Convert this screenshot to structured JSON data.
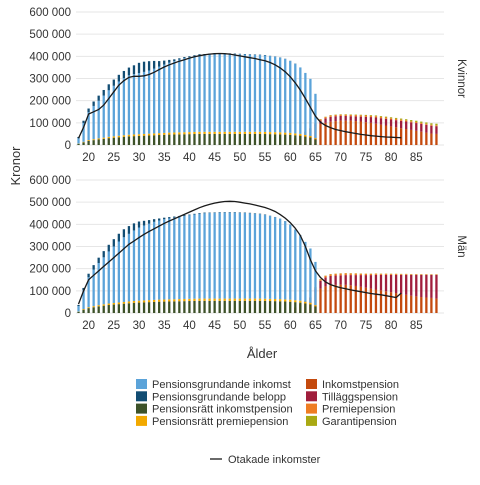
{
  "chart_data": {
    "type": "bar",
    "xlabel": "Ålder",
    "ylabel": "Kronor",
    "ylim": [
      0,
      600000
    ],
    "y_ticks": [
      0,
      100000,
      200000,
      300000,
      400000,
      500000,
      600000
    ],
    "y_tick_labels": [
      "0",
      "100 000",
      "200 000",
      "300 000",
      "400 000",
      "500 000",
      "600 000"
    ],
    "x_ticks": [
      20,
      25,
      30,
      35,
      40,
      45,
      50,
      55,
      60,
      65,
      70,
      75,
      80,
      85
    ],
    "x_tick_labels": [
      "20",
      "25",
      "30",
      "35",
      "40",
      "45",
      "50",
      "55",
      "60",
      "65",
      "70",
      "75",
      "80",
      "85"
    ],
    "xlim": [
      17.5,
      90.5
    ],
    "stacked": true,
    "grid": true,
    "legend_position": "bottom",
    "series_meta": [
      {
        "key": "pgi",
        "name": "Pensionsgrundande inkomst",
        "color": "#5ba3d9"
      },
      {
        "key": "pgb",
        "name": "Pensionsgrundande belopp",
        "color": "#124d73"
      },
      {
        "key": "pri",
        "name": "Pensionsrätt inkomstpension",
        "color": "#3d5229"
      },
      {
        "key": "prp",
        "name": "Pensionsrätt premiepension",
        "color": "#f2a900"
      },
      {
        "key": "ink",
        "name": "Inkomstpension",
        "color": "#c44a0e"
      },
      {
        "key": "til",
        "name": "Tilläggspension",
        "color": "#a01e3c"
      },
      {
        "key": "pre",
        "name": "Premiepension",
        "color": "#ee7d23"
      },
      {
        "key": "gar",
        "name": "Garantipension",
        "color": "#a9a913"
      }
    ],
    "line_legend": "Otakade inkomster",
    "line_color": "#1a1a1a",
    "panels": [
      {
        "name": "Kvinnor",
        "working_ages": [
          18,
          19,
          20,
          21,
          22,
          23,
          24,
          25,
          26,
          27,
          28,
          29,
          30,
          31,
          32,
          33,
          34,
          35,
          36,
          37,
          38,
          39,
          40,
          41,
          42,
          43,
          44,
          45,
          46,
          47,
          48,
          49,
          50,
          51,
          52,
          53,
          54,
          55,
          56,
          57,
          58,
          59,
          60,
          61,
          62,
          63,
          64,
          65
        ],
        "pgi": [
          25000,
          85000,
          125000,
          150000,
          170000,
          190000,
          210000,
          228000,
          245000,
          258000,
          268000,
          272000,
          276000,
          280000,
          285000,
          292000,
          300000,
          308000,
          316000,
          322000,
          328000,
          334000,
          338000,
          342000,
          346000,
          348000,
          350000,
          352000,
          352000,
          352000,
          352000,
          351000,
          350000,
          349000,
          348000,
          347000,
          346000,
          345000,
          343000,
          341000,
          337000,
          332000,
          324000,
          314000,
          300000,
          280000,
          258000,
          200000
        ],
        "pgb": [
          5000,
          10000,
          17000,
          20000,
          23000,
          25000,
          27000,
          28000,
          30000,
          32000,
          35000,
          40000,
          46000,
          46000,
          42000,
          35000,
          25000,
          18000,
          12000,
          8000,
          6000,
          5000,
          4000,
          4000,
          4000,
          3000,
          3000,
          3000,
          3000,
          2000,
          2000,
          2000,
          2000,
          2000,
          2000,
          2000,
          2000,
          2000,
          1000,
          1000,
          1000,
          1000,
          1000,
          1000,
          0,
          0,
          0,
          0
        ],
        "pri": [
          5000,
          12000,
          19000,
          22000,
          25000,
          28000,
          31000,
          33000,
          35000,
          37000,
          39000,
          40000,
          41000,
          42000,
          43000,
          44000,
          45000,
          46000,
          47000,
          47500,
          48000,
          48500,
          49000,
          49500,
          50000,
          50000,
          50000,
          50000,
          50000,
          50000,
          50000,
          50000,
          50000,
          50000,
          50000,
          50000,
          50000,
          49500,
          49000,
          48500,
          48000,
          47000,
          46000,
          44000,
          42000,
          38000,
          34000,
          26000
        ],
        "prp": [
          1200,
          2500,
          3600,
          4200,
          4700,
          5200,
          5800,
          6200,
          6600,
          7000,
          7300,
          7500,
          7700,
          7900,
          8100,
          8300,
          8500,
          8700,
          8900,
          9000,
          9100,
          9200,
          9300,
          9400,
          9500,
          9500,
          9500,
          9500,
          9500,
          9500,
          9500,
          9500,
          9500,
          9500,
          9500,
          9500,
          9500,
          9400,
          9300,
          9200,
          9100,
          8900,
          8700,
          8300,
          8000,
          7200,
          6400,
          5000
        ],
        "retired_ages": [
          61,
          62,
          63,
          64,
          65,
          66,
          67,
          68,
          69,
          70,
          71,
          72,
          73,
          74,
          75,
          76,
          77,
          78,
          79,
          80,
          81,
          82,
          83,
          84,
          85,
          86,
          87,
          88,
          89
        ],
        "ink": [
          30000,
          45000,
          60000,
          75000,
          85000,
          95000,
          100000,
          105000,
          108000,
          110000,
          110000,
          110000,
          108000,
          106000,
          103000,
          100000,
          96000,
          92000,
          88000,
          84000,
          80000,
          76000,
          72000,
          68000,
          64000,
          60000,
          56000,
          52000,
          50000
        ],
        "til": [
          0,
          0,
          0,
          0,
          8000,
          15000,
          20000,
          22000,
          22000,
          21000,
          21000,
          20000,
          21000,
          22000,
          24000,
          26000,
          28000,
          29000,
          30000,
          31000,
          32000,
          33000,
          34000,
          34000,
          35000,
          35000,
          35000,
          35000,
          35000
        ],
        "pre": [
          0,
          0,
          0,
          0,
          4000,
          5500,
          6000,
          6000,
          6000,
          6000,
          6000,
          6000,
          6000,
          6000,
          6000,
          6000,
          6000,
          6000,
          6000,
          5800,
          5600,
          5400,
          5200,
          5000,
          4800,
          4600,
          4400,
          4200,
          4000
        ],
        "gar": [
          0,
          0,
          0,
          0,
          1000,
          1200,
          1500,
          1500,
          1500,
          1600,
          1800,
          2000,
          2200,
          2500,
          2800,
          3100,
          3400,
          3700,
          4000,
          4300,
          4600,
          4900,
          5200,
          5500,
          5800,
          6100,
          6400,
          6700,
          7000
        ],
        "line_x": [
          18,
          19,
          20,
          21,
          22,
          23,
          24,
          25,
          26,
          27,
          28,
          29,
          30,
          31,
          32,
          33,
          34,
          35,
          36,
          37,
          38,
          39,
          40,
          41,
          42,
          43,
          44,
          45,
          46,
          47,
          48,
          49,
          50,
          51,
          52,
          53,
          54,
          55,
          56,
          57,
          58,
          59,
          60,
          61,
          62,
          63,
          64,
          65,
          66,
          67,
          68,
          69,
          70,
          71,
          72,
          73,
          74,
          75,
          76,
          77,
          78,
          79,
          80,
          81,
          82
        ],
        "line_y": [
          30000,
          80000,
          140000,
          150000,
          160000,
          180000,
          210000,
          240000,
          270000,
          290000,
          305000,
          310000,
          310000,
          312000,
          318000,
          328000,
          340000,
          352000,
          362000,
          370000,
          378000,
          385000,
          392000,
          398000,
          403000,
          407000,
          410000,
          412000,
          413000,
          412000,
          410000,
          406000,
          402000,
          398000,
          394000,
          390000,
          385000,
          380000,
          372000,
          362000,
          348000,
          330000,
          308000,
          280000,
          248000,
          210000,
          170000,
          130000,
          103000,
          88000,
          78000,
          70000,
          65000,
          60000,
          56000,
          52000,
          48000,
          45000,
          42000,
          40000,
          38000,
          36000,
          35000,
          34000,
          33000
        ]
      },
      {
        "name": "Män",
        "working_ages": [
          18,
          19,
          20,
          21,
          22,
          23,
          24,
          25,
          26,
          27,
          28,
          29,
          30,
          31,
          32,
          33,
          34,
          35,
          36,
          37,
          38,
          39,
          40,
          41,
          42,
          43,
          44,
          45,
          46,
          47,
          48,
          49,
          50,
          51,
          52,
          53,
          54,
          55,
          56,
          57,
          58,
          59,
          60,
          61,
          62,
          63,
          64,
          65
        ],
        "pgi": [
          25000,
          85000,
          135000,
          165000,
          190000,
          212000,
          235000,
          255000,
          275000,
          292000,
          305000,
          318000,
          330000,
          338000,
          345000,
          352000,
          357000,
          362000,
          365000,
          368000,
          371000,
          374000,
          377000,
          380000,
          383000,
          385000,
          386000,
          387000,
          388000,
          388000,
          388000,
          388000,
          387000,
          386000,
          385000,
          383000,
          381000,
          378000,
          374000,
          369000,
          362000,
          352000,
          338000,
          318000,
          296000,
          270000,
          245000,
          195000
        ],
        "pgb": [
          5000,
          10000,
          16000,
          20000,
          24000,
          28000,
          30000,
          33000,
          35000,
          36000,
          35000,
          32000,
          27000,
          21000,
          16000,
          12000,
          9000,
          7000,
          6000,
          5000,
          4000,
          4000,
          3000,
          3000,
          3000,
          3000,
          2000,
          2000,
          2000,
          2000,
          2000,
          2000,
          2000,
          2000,
          2000,
          2000,
          2000,
          2000,
          1000,
          1000,
          1000,
          1000,
          1000,
          1000,
          0,
          0,
          0,
          0
        ],
        "pri": [
          5000,
          15000,
          22000,
          26000,
          30000,
          33000,
          36000,
          38000,
          40000,
          42000,
          44000,
          46000,
          47000,
          48000,
          49000,
          50000,
          51000,
          51500,
          52000,
          52500,
          53000,
          53500,
          54000,
          54500,
          55000,
          55000,
          55000,
          55000,
          55000,
          55000,
          55000,
          55000,
          55000,
          55000,
          55000,
          55000,
          55000,
          54500,
          54000,
          53500,
          53000,
          52000,
          51000,
          49000,
          47000,
          43000,
          39000,
          30000
        ],
        "prp": [
          1200,
          3000,
          4200,
          5000,
          5600,
          6200,
          6700,
          7100,
          7500,
          7800,
          8100,
          8400,
          8700,
          8900,
          9100,
          9300,
          9400,
          9500,
          9600,
          9700,
          9800,
          9900,
          10000,
          10000,
          10000,
          10000,
          10000,
          10000,
          10000,
          10000,
          10000,
          10000,
          10000,
          10000,
          10000,
          10000,
          10000,
          9900,
          9800,
          9700,
          9600,
          9400,
          9200,
          8800,
          8500,
          7800,
          7000,
          5500
        ],
        "retired_ages": [
          61,
          62,
          63,
          64,
          65,
          66,
          67,
          68,
          69,
          70,
          71,
          72,
          73,
          74,
          75,
          76,
          77,
          78,
          79,
          80,
          81,
          82,
          83,
          84,
          85,
          86,
          87,
          88,
          89
        ],
        "ink": [
          25000,
          40000,
          55000,
          70000,
          90000,
          110000,
          120000,
          125000,
          127000,
          128000,
          127000,
          125000,
          122000,
          118000,
          114000,
          110000,
          106000,
          102000,
          98000,
          94000,
          90000,
          86000,
          82000,
          78000,
          75000,
          72000,
          70000,
          68000,
          65000
        ],
        "til": [
          0,
          0,
          0,
          0,
          20000,
          35000,
          40000,
          42000,
          42000,
          42000,
          44000,
          46000,
          49000,
          53000,
          57000,
          61000,
          66000,
          70000,
          74000,
          78000,
          82000,
          86000,
          90000,
          94000,
          97000,
          100000,
          102000,
          104000,
          107000
        ],
        "pre": [
          0,
          0,
          0,
          0,
          6000,
          7000,
          8000,
          8000,
          8000,
          8000,
          8000,
          7500,
          7000,
          6500,
          6000,
          6000,
          5500,
          5000,
          5000,
          4500,
          4000,
          3500,
          3500,
          3000,
          3000,
          2500,
          2500,
          2000,
          2000
        ],
        "gar": [
          0,
          0,
          0,
          0,
          1000,
          1000,
          1000,
          1000,
          1000,
          1000,
          1000,
          1000,
          1000,
          1000,
          1000,
          1000,
          1000,
          1000,
          1000,
          1000,
          1000,
          1000,
          1000,
          1000,
          1000,
          1000,
          1000,
          1000,
          1000
        ],
        "line_x": [
          18,
          19,
          20,
          21,
          22,
          23,
          24,
          25,
          26,
          27,
          28,
          29,
          30,
          31,
          32,
          33,
          34,
          35,
          36,
          37,
          38,
          39,
          40,
          41,
          42,
          43,
          44,
          45,
          46,
          47,
          48,
          49,
          50,
          51,
          52,
          53,
          54,
          55,
          56,
          57,
          58,
          59,
          60,
          61,
          62,
          63,
          64,
          65,
          66,
          67,
          68,
          69,
          70,
          71,
          72,
          73,
          74,
          75,
          76,
          77,
          78,
          79,
          80,
          81,
          82
        ],
        "line_y": [
          40000,
          100000,
          150000,
          170000,
          190000,
          210000,
          230000,
          250000,
          270000,
          290000,
          310000,
          325000,
          340000,
          355000,
          368000,
          380000,
          392000,
          404000,
          415000,
          425000,
          435000,
          445000,
          455000,
          465000,
          475000,
          483000,
          490000,
          496000,
          500000,
          503000,
          504000,
          503000,
          500000,
          496000,
          492000,
          487000,
          482000,
          476000,
          468000,
          458000,
          444000,
          428000,
          408000,
          382000,
          350000,
          300000,
          240000,
          190000,
          160000,
          140000,
          128000,
          120000,
          114000,
          109000,
          104000,
          100000,
          96000,
          92000,
          88000,
          85000,
          82000,
          78000,
          74000,
          70000,
          90000
        ]
      }
    ]
  }
}
